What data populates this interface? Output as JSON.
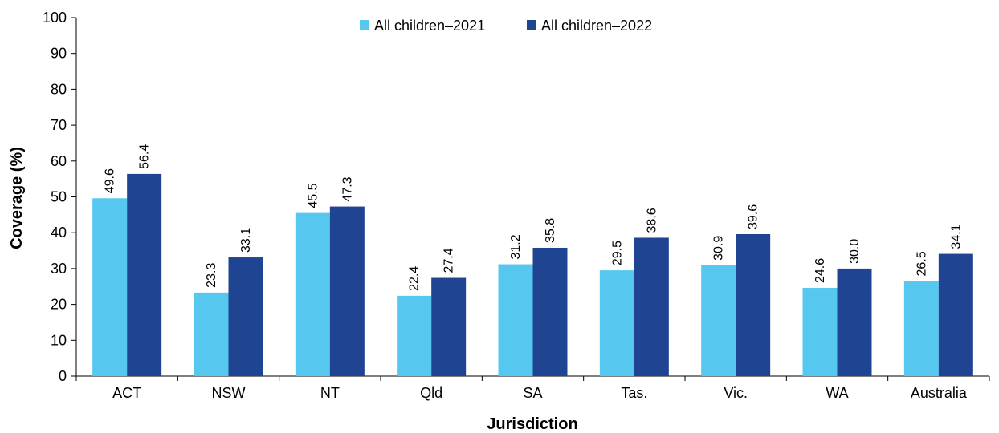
{
  "chart_data": {
    "type": "bar",
    "xlabel": "Jurisdiction",
    "ylabel": "Coverage (%)",
    "ylim": [
      0,
      100
    ],
    "yticks": [
      0,
      10,
      20,
      30,
      40,
      50,
      60,
      70,
      80,
      90,
      100
    ],
    "grid": false,
    "legend_position": "top",
    "categories": [
      "ACT",
      "NSW",
      "NT",
      "Qld",
      "SA",
      "Tas.",
      "Vic.",
      "WA",
      "Australia"
    ],
    "series": [
      {
        "name": "All children–2021",
        "color": "#56C8F0",
        "values": [
          49.6,
          23.3,
          45.5,
          22.4,
          31.2,
          29.5,
          30.9,
          24.6,
          26.5
        ],
        "labels": [
          "49.6",
          "23.3",
          "45.5",
          "22.4",
          "31.2",
          "29.5",
          "30.9",
          "24.6",
          "26.5"
        ]
      },
      {
        "name": "All children–2022",
        "color": "#1F4492",
        "values": [
          56.4,
          33.1,
          47.3,
          27.4,
          35.8,
          38.6,
          39.6,
          30.0,
          34.1
        ],
        "labels": [
          "56.4",
          "33.1",
          "47.3",
          "27.4",
          "35.8",
          "38.6",
          "39.6",
          "30.0",
          "34.1"
        ]
      }
    ]
  }
}
